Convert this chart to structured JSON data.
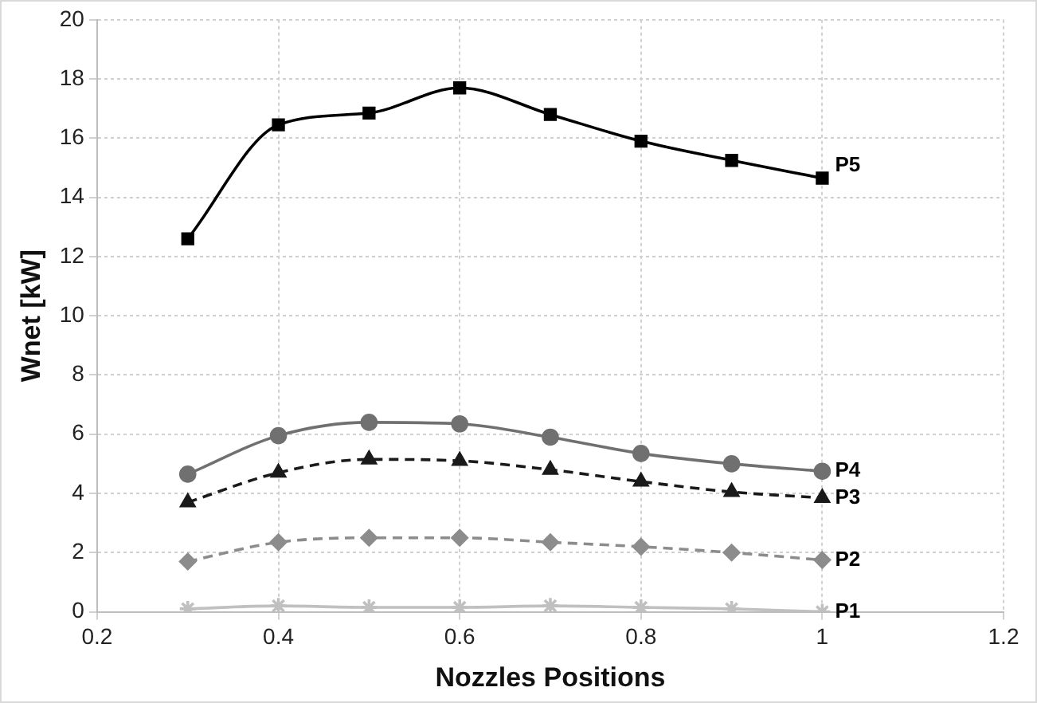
{
  "chart_data": {
    "type": "line",
    "xlabel": "Nozzles Positions",
    "ylabel": "Wnet [kW]",
    "x": [
      0.3,
      0.4,
      0.5,
      0.6,
      0.7,
      0.8,
      0.9,
      1.0
    ],
    "xlim": [
      0.2,
      1.2
    ],
    "xticks": [
      0.2,
      0.4,
      0.6,
      0.8,
      1,
      1.2
    ],
    "ylim": [
      0,
      20
    ],
    "yticks": [
      0,
      2,
      4,
      6,
      8,
      10,
      12,
      14,
      16,
      18,
      20
    ],
    "grid": true,
    "legend": false,
    "series": [
      {
        "name": "P5",
        "color": "#000000",
        "marker": "square",
        "line_style": "solid",
        "values": [
          12.6,
          16.45,
          16.85,
          17.7,
          16.8,
          15.9,
          15.25,
          14.65
        ]
      },
      {
        "name": "P4",
        "color": "#707070",
        "marker": "circle",
        "line_style": "solid",
        "values": [
          4.65,
          5.95,
          6.4,
          6.35,
          5.9,
          5.35,
          5.0,
          4.75
        ]
      },
      {
        "name": "P3",
        "color": "#1a1a1a",
        "marker": "triangle",
        "line_style": "dashed",
        "values": [
          3.7,
          4.7,
          5.15,
          5.1,
          4.8,
          4.4,
          4.05,
          3.85
        ]
      },
      {
        "name": "P2",
        "color": "#8c8c8c",
        "marker": "diamond",
        "line_style": "dashed",
        "values": [
          1.7,
          2.35,
          2.5,
          2.5,
          2.35,
          2.2,
          2.0,
          1.75
        ]
      },
      {
        "name": "P1",
        "color": "#c0c0c0",
        "marker": "cross",
        "line_style": "solid",
        "values": [
          0.1,
          0.2,
          0.15,
          0.15,
          0.2,
          0.15,
          0.1,
          0.0
        ]
      }
    ]
  }
}
